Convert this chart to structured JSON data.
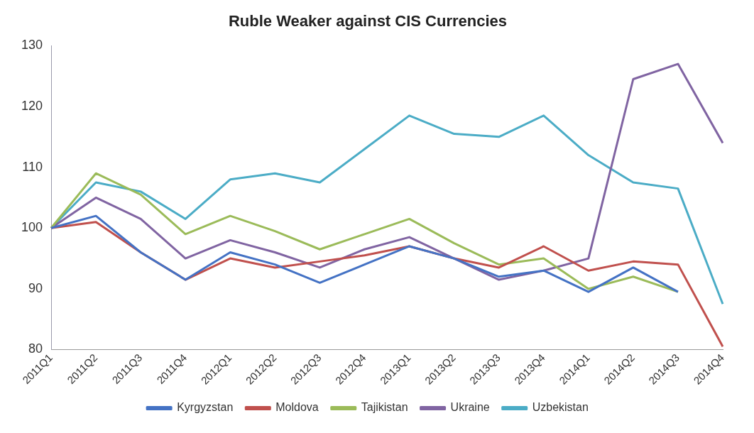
{
  "chart_data": {
    "type": "line",
    "title": "Ruble Weaker against CIS Currencies",
    "categories": [
      "2011Q1",
      "2011Q2",
      "2011Q3",
      "2011Q4",
      "2012Q1",
      "2012Q2",
      "2012Q3",
      "2012Q4",
      "2013Q1",
      "2013Q2",
      "2013Q3",
      "2013Q4",
      "2014Q1",
      "2014Q2",
      "2014Q3",
      "2014Q4"
    ],
    "series": [
      {
        "name": "Kyrgyzstan",
        "color": "#4472c4",
        "values": [
          100,
          102,
          96,
          91.5,
          96,
          94,
          91,
          94,
          97,
          95,
          92,
          93,
          89.5,
          93.5,
          89.5,
          null
        ]
      },
      {
        "name": "Moldova",
        "color": "#c0504d",
        "values": [
          100,
          101,
          96,
          91.5,
          95,
          93.5,
          94.5,
          95.5,
          97,
          95,
          93.5,
          97,
          93,
          94.5,
          94,
          80.5
        ]
      },
      {
        "name": "Tajikistan",
        "color": "#9bbb59",
        "values": [
          100,
          109,
          105.5,
          99,
          102,
          99.5,
          96.5,
          99,
          101.5,
          97.5,
          94,
          95,
          90,
          92,
          89.5,
          null
        ]
      },
      {
        "name": "Ukraine",
        "color": "#8064a2",
        "values": [
          100,
          105,
          101.5,
          95,
          98,
          96,
          93.5,
          96.5,
          98.5,
          95,
          91.5,
          93,
          95,
          124.5,
          127,
          114
        ]
      },
      {
        "name": "Uzbekistan",
        "color": "#4bacc6",
        "values": [
          100,
          107.5,
          106,
          101.5,
          108,
          109,
          107.5,
          113,
          118.5,
          115.5,
          115,
          118.5,
          112,
          107.5,
          106.5,
          87.5
        ]
      }
    ],
    "ylim": [
      80,
      130
    ],
    "yticks": [
      80,
      90,
      100,
      110,
      120,
      130
    ],
    "grid": false,
    "legend": "bottom",
    "marker": "none",
    "line_style": "solid"
  }
}
